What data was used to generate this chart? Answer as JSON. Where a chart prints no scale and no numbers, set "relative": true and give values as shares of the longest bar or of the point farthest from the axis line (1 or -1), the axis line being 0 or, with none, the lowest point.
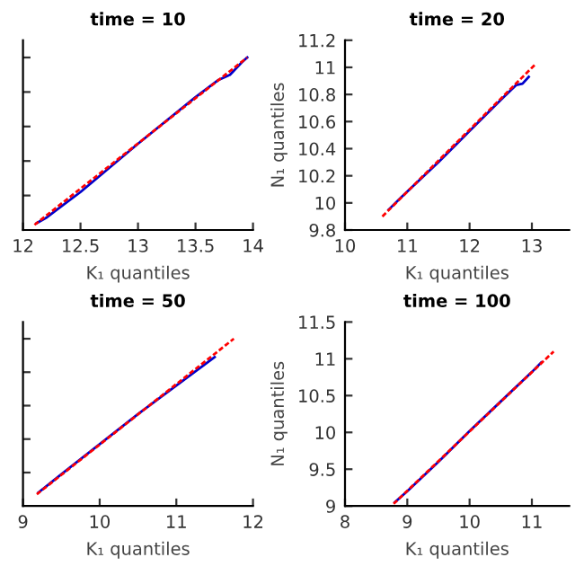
{
  "chart_data": [
    {
      "type": "line",
      "title": "time = 10",
      "xlabel": "K₁ quantiles",
      "relative": true,
      "tick_labels": "x",
      "xlim": [
        12,
        14
      ],
      "xticks": [
        12,
        12.5,
        13,
        13.5,
        14
      ],
      "grid": false,
      "series": [
        {
          "color": "#ff0000",
          "line_style": "dashed",
          "x": [
            12.1,
            13.95
          ],
          "values": [
            0.03,
            1.0
          ]
        },
        {
          "color": "#0000cc",
          "line_style": "solid",
          "x": [
            12.12,
            12.2,
            12.3,
            12.5,
            13,
            13.5,
            13.7,
            13.8,
            13.9,
            13.95
          ],
          "values": [
            0.04,
            0.07,
            0.12,
            0.22,
            0.5,
            0.77,
            0.87,
            0.9,
            0.97,
            1.0
          ]
        }
      ]
    },
    {
      "type": "line",
      "title": "time = 20",
      "xlabel": "K₁ quantiles",
      "ylabel": "N₁ quantiles",
      "xlim": [
        10,
        13.6
      ],
      "xticks": [
        10,
        11,
        12,
        13
      ],
      "ylim": [
        9.8,
        11.2
      ],
      "yticks": [
        9.8,
        10,
        10.2,
        10.4,
        10.6,
        10.8,
        11,
        11.2
      ],
      "grid": false,
      "series": [
        {
          "color": "#ff0000",
          "line_style": "dashed",
          "x": [
            10.6,
            13.05
          ],
          "values": [
            9.9,
            11.02
          ]
        },
        {
          "color": "#0000cc",
          "line_style": "solid",
          "x": [
            10.7,
            10.9,
            11.5,
            12,
            12.5,
            12.75,
            12.85,
            12.95
          ],
          "values": [
            9.95,
            10.04,
            10.3,
            10.53,
            10.76,
            10.87,
            10.88,
            10.93
          ]
        }
      ]
    },
    {
      "type": "line",
      "title": "time = 50",
      "xlabel": "K₁ quantiles",
      "relative": true,
      "tick_labels": "x",
      "xlim": [
        9,
        12
      ],
      "xticks": [
        9,
        10,
        11,
        12
      ],
      "grid": false,
      "series": [
        {
          "color": "#ff0000",
          "line_style": "dashed",
          "x": [
            9.18,
            11.75
          ],
          "values": [
            0.07,
            1.0
          ]
        },
        {
          "color": "#0000cc",
          "line_style": "solid",
          "x": [
            9.2,
            9.5,
            10,
            10.5,
            11,
            11.5
          ],
          "values": [
            0.08,
            0.19,
            0.37,
            0.55,
            0.72,
            0.89
          ]
        }
      ]
    },
    {
      "type": "line",
      "title": "time = 100",
      "xlabel": "K₁ quantiles",
      "ylabel": "N₁ quantiles",
      "xlim": [
        8,
        11.6
      ],
      "xticks": [
        8,
        9,
        10,
        11
      ],
      "ylim": [
        9,
        11.5
      ],
      "yticks": [
        9,
        9.5,
        10,
        10.5,
        11,
        11.5
      ],
      "grid": false,
      "series": [
        {
          "color": "#ff0000",
          "line_style": "dashed",
          "x": [
            8.78,
            11.35
          ],
          "values": [
            9.03,
            11.1
          ]
        },
        {
          "color": "#0000cc",
          "line_style": "solid",
          "x": [
            8.8,
            9,
            9.5,
            10,
            10.5,
            11,
            11.15
          ],
          "values": [
            9.05,
            9.2,
            9.6,
            10.02,
            10.42,
            10.82,
            10.95
          ]
        }
      ]
    }
  ]
}
